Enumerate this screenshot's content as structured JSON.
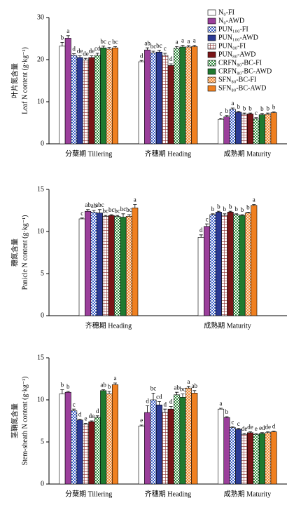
{
  "chart_data": [
    {
      "type": "bar",
      "ylabel": [
        "叶片氮含量",
        "Leaf N content (g·kg⁻¹)"
      ],
      "categories": [
        "分蘖期 Tillering",
        "齐穗期 Heading",
        "成熟期 Maturity"
      ],
      "ylim": [
        0,
        30
      ],
      "yticks": [
        0,
        10,
        20,
        30
      ],
      "legend": "upper right",
      "series": [
        {
          "name": "N₀-FI",
          "color": "#ffffff",
          "hatch": "none",
          "values": [
            23.2,
            19.5,
            5.8
          ],
          "errors": [
            0.9,
            0.3,
            0.3
          ],
          "letters": [
            "b",
            "d",
            "c"
          ]
        },
        {
          "name": "N₀-AWD",
          "color": "#9b3f9b",
          "hatch": "none",
          "values": [
            25.1,
            22.3,
            6.4
          ],
          "errors": [
            0.6,
            0.5,
            0.3
          ],
          "letters": [
            "a",
            "ab",
            "b"
          ]
        },
        {
          "name": "PUN₁₀₀-FI",
          "color": "#3a5fc8",
          "hatch": "checker",
          "values": [
            21.0,
            21.6,
            8.2
          ],
          "errors": [
            0.4,
            0.4,
            0.3
          ],
          "letters": [
            "d",
            "bc",
            "a"
          ]
        },
        {
          "name": "PUN₁₀₀-AWD",
          "color": "#2b3a94",
          "hatch": "none",
          "values": [
            20.5,
            21.8,
            7.5
          ],
          "errors": [
            0.4,
            0.4,
            0.2
          ],
          "letters": [
            "de",
            "bc",
            "b"
          ]
        },
        {
          "name": "PUN₈₀-FI",
          "color": "#8a2a2a",
          "hatch": "grid",
          "values": [
            19.9,
            21.0,
            7.0
          ],
          "errors": [
            0.4,
            0.5,
            0.3
          ],
          "letters": [
            "de",
            "c",
            "b"
          ]
        },
        {
          "name": "PUN₈₀-AWD",
          "color": "#7a1518",
          "hatch": "none",
          "values": [
            20.5,
            18.6,
            7.1
          ],
          "errors": [
            0.4,
            0.4,
            0.2
          ],
          "letters": [
            "de",
            "d",
            "b"
          ]
        },
        {
          "name": "CRFN₈₀-BC-FI",
          "color": "#2e8b3a",
          "hatch": "checker",
          "values": [
            21.0,
            22.7,
            5.9
          ],
          "errors": [
            0.5,
            0.4,
            0.3
          ],
          "letters": [
            "cd",
            "a",
            "c"
          ]
        },
        {
          "name": "CRFN₈₀-BC-AWD",
          "color": "#1f7a30",
          "hatch": "none",
          "values": [
            22.8,
            23.0,
            6.9
          ],
          "errors": [
            0.4,
            0.4,
            0.3
          ],
          "letters": [
            "bc",
            "a",
            "b"
          ]
        },
        {
          "name": "SFN₈₀-BC-FI",
          "color": "#f08020",
          "hatch": "cross",
          "values": [
            22.5,
            23.0,
            7.0
          ],
          "errors": [
            0.4,
            0.3,
            0.3
          ],
          "letters": [
            "c",
            "a",
            "b"
          ]
        },
        {
          "name": "SFN₈₀-BC-AWD",
          "color": "#f08020",
          "hatch": "none",
          "values": [
            22.8,
            23.1,
            7.4
          ],
          "errors": [
            0.3,
            0.3,
            0.2
          ],
          "letters": [
            "bc",
            "a",
            "b"
          ]
        }
      ]
    },
    {
      "type": "bar",
      "ylabel": [
        "穗氮含量",
        "Panicle N content (g·kg⁻¹)"
      ],
      "categories": [
        "齐穗期 Heading",
        "成熟期 Maturity"
      ],
      "ylim": [
        0,
        15
      ],
      "yticks": [
        0,
        5,
        10,
        15
      ],
      "series": [
        {
          "values": [
            11.5,
            9.3
          ],
          "errors": [
            0.1,
            0.3
          ],
          "letters": [
            "c",
            "d"
          ]
        },
        {
          "values": [
            12.4,
            10.6
          ],
          "errors": [
            0.2,
            0.3
          ],
          "letters": [
            "ab",
            "c"
          ]
        },
        {
          "values": [
            12.3,
            12.0
          ],
          "errors": [
            0.2,
            0.1
          ],
          "letters": [
            "ab",
            "b"
          ]
        },
        {
          "values": [
            12.2,
            12.3
          ],
          "errors": [
            0.4,
            0.1
          ],
          "letters": [
            "abc",
            "b"
          ]
        },
        {
          "values": [
            11.8,
            11.9
          ],
          "errors": [
            0.1,
            0.2
          ],
          "letters": [
            "bc",
            "b"
          ]
        },
        {
          "values": [
            11.9,
            12.3
          ],
          "errors": [
            0.1,
            0.1
          ],
          "letters": [
            "bc",
            "b"
          ]
        },
        {
          "values": [
            11.8,
            12.0
          ],
          "errors": [
            0.1,
            0.1
          ],
          "letters": [
            "bc",
            "b"
          ]
        },
        {
          "values": [
            11.7,
            11.9
          ],
          "errors": [
            0.4,
            0.1
          ],
          "letters": [
            "bc",
            "b"
          ]
        },
        {
          "values": [
            11.8,
            12.2
          ],
          "errors": [
            0.2,
            0.1
          ],
          "letters": [
            "bc",
            "b"
          ]
        },
        {
          "values": [
            12.8,
            13.1
          ],
          "errors": [
            0.4,
            0.1
          ],
          "letters": [
            "a",
            "a"
          ]
        }
      ]
    },
    {
      "type": "bar",
      "ylabel": [
        "茎鞘氮含量",
        "Stem-sheath N content (g·kg⁻¹)"
      ],
      "categories": [
        "分蘖期 Tillering",
        "齐穗期 Heading",
        "成熟期 Maturity"
      ],
      "ylim": [
        0,
        15
      ],
      "yticks": [
        0,
        5,
        10,
        15
      ],
      "series": [
        {
          "values": [
            10.7,
            6.9,
            8.9
          ],
          "errors": [
            0.5,
            0.1,
            0.1
          ],
          "letters": [
            "b",
            "e",
            "a"
          ]
        },
        {
          "values": [
            10.9,
            8.5,
            7.9
          ],
          "errors": [
            0.1,
            0.8,
            0.1
          ],
          "letters": [
            "b",
            "d",
            "b"
          ]
        },
        {
          "values": [
            8.7,
            10.0,
            6.7
          ],
          "errors": [
            0.2,
            0.8,
            0.1
          ],
          "letters": [
            "c",
            "bc",
            "c"
          ]
        },
        {
          "values": [
            7.6,
            9.4,
            6.5
          ],
          "errors": [
            0.1,
            0.4,
            0.1
          ],
          "letters": [
            "d",
            "cd",
            "c"
          ]
        },
        {
          "values": [
            7.1,
            8.5,
            5.9
          ],
          "errors": [
            0.1,
            0.4,
            0.1
          ],
          "letters": [
            "e",
            "d",
            "de"
          ]
        },
        {
          "values": [
            7.4,
            8.9,
            6.1
          ],
          "errors": [
            0.1,
            0.3,
            0.1
          ],
          "letters": [
            "de",
            "d",
            "de"
          ]
        },
        {
          "values": [
            7.9,
            10.6,
            5.9
          ],
          "errors": [
            0.2,
            0.3,
            0.1
          ],
          "letters": [
            "d",
            "ab",
            "e"
          ]
        },
        {
          "values": [
            11.1,
            10.3,
            6.0
          ],
          "errors": [
            0.1,
            0.4,
            0.1
          ],
          "letters": [
            "ab",
            "bc",
            "ed"
          ]
        },
        {
          "values": [
            10.7,
            11.4,
            6.1
          ],
          "errors": [
            0.3,
            0.2,
            0.1
          ],
          "letters": [
            "b",
            "a",
            "de"
          ]
        },
        {
          "values": [
            11.8,
            10.8,
            6.2
          ],
          "errors": [
            0.2,
            0.3,
            0.1
          ],
          "letters": [
            "a",
            "ab",
            "d"
          ]
        }
      ]
    }
  ]
}
